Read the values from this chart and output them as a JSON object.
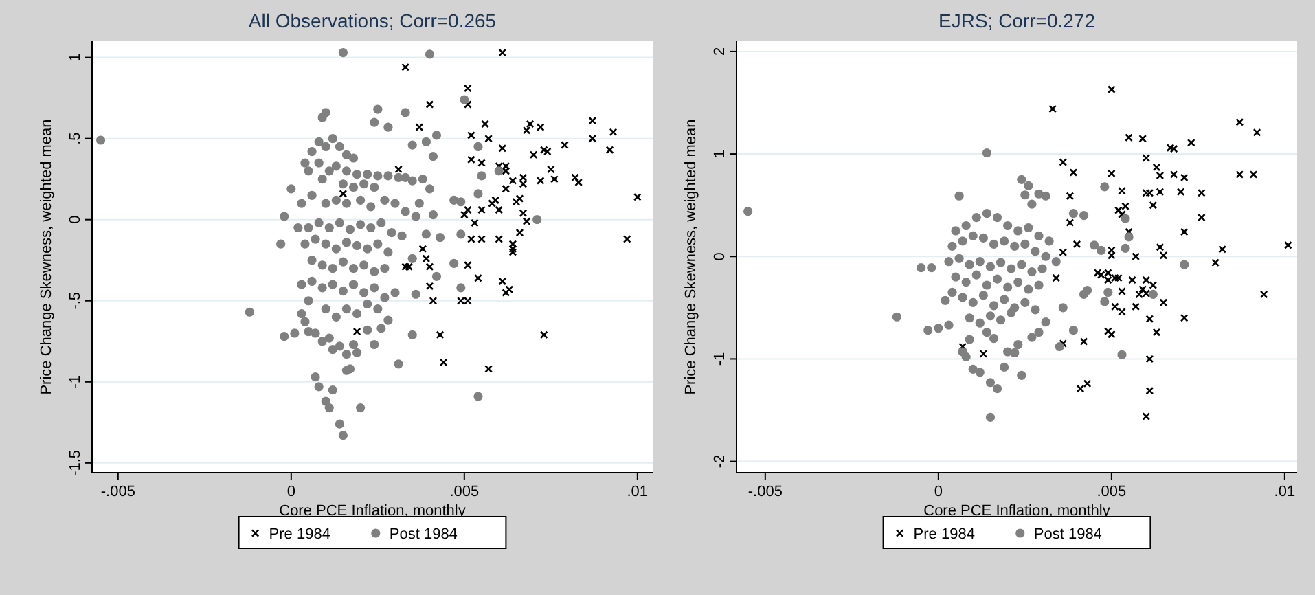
{
  "chart_data": [
    {
      "type": "scatter",
      "title": "All Observations; Corr=0.265",
      "xlabel": "Core PCE Inflation, monthly",
      "ylabel": "Price Change Skewness, weighted mean",
      "xlim": [
        -0.00575,
        0.01044
      ],
      "ylim": [
        -1.56,
        1.1
      ],
      "xticks": [
        {
          "value": -0.005,
          "label": "-.005"
        },
        0,
        {
          "value": 0.005,
          "label": ".005"
        },
        {
          "value": 0.01,
          "label": ".01"
        }
      ],
      "yticks": [
        {
          "value": -1.5,
          "label": "-1.5"
        },
        -1,
        {
          "value": -0.5,
          "label": "-.5"
        },
        0,
        {
          "value": 0.5,
          "label": ".5"
        },
        1
      ],
      "grid": "y",
      "legend": "bottom",
      "series": [
        {
          "name": "Pre 1984",
          "color": "#000000",
          "marker": "cross",
          "x": [
            0.0033,
            0.0061,
            0.004,
            0.0051,
            0.0051,
            0.0037,
            0.0056,
            0.0052,
            0.0057,
            0.0061,
            0.0069,
            0.0068,
            0.0072,
            0.0087,
            0.0087,
            0.0093,
            0.0092,
            0.0079,
            0.0073,
            0.0074,
            0.007,
            0.0052,
            0.0055,
            0.006,
            0.0062,
            0.0062,
            0.0075,
            0.0082,
            0.0083,
            0.0076,
            0.0072,
            0.0067,
            0.0067,
            0.0064,
            0.01,
            0.0062,
            0.0066,
            0.0065,
            0.0059,
            0.0058,
            0.006,
            0.0055,
            0.0051,
            0.005,
            0.0053,
            0.0067,
            0.0068,
            0.0066,
            0.0052,
            0.0055,
            0.006,
            0.0064,
            0.0064,
            0.0097,
            0.0038,
            0.0039,
            0.004,
            0.0034,
            0.0051,
            0.0064,
            0.0033,
            0.0054,
            0.0061,
            0.0062,
            0.0063,
            0.004,
            0.0041,
            0.0049,
            0.0051,
            0.0043,
            0.0073,
            0.0019,
            0.0044,
            0.0057,
            0.0031,
            0.0015
          ],
          "values": [
            0.94,
            1.03,
            0.71,
            0.81,
            0.71,
            0.57,
            0.59,
            0.52,
            0.5,
            0.44,
            0.59,
            0.55,
            0.57,
            0.61,
            0.5,
            0.54,
            0.43,
            0.46,
            0.43,
            0.42,
            0.4,
            0.37,
            0.35,
            0.33,
            0.33,
            0.3,
            0.31,
            0.26,
            0.23,
            0.25,
            0.24,
            0.26,
            0.22,
            0.24,
            0.14,
            0.19,
            0.13,
            0.11,
            0.12,
            0.1,
            0.06,
            0.06,
            0.06,
            0.03,
            -0.02,
            0.04,
            -0.01,
            -0.08,
            -0.12,
            -0.12,
            -0.12,
            -0.15,
            -0.18,
            -0.12,
            -0.18,
            -0.24,
            -0.29,
            -0.29,
            -0.28,
            -0.2,
            -0.29,
            -0.36,
            -0.38,
            -0.45,
            -0.43,
            -0.41,
            -0.5,
            -0.5,
            -0.5,
            -0.71,
            -0.71,
            -0.69,
            -0.88,
            -0.92,
            0.31,
            0.16
          ]
        },
        {
          "name": "Post 1984",
          "color": "#808080",
          "marker": "circle",
          "x": [
            -0.0055,
            0.0015,
            0.004,
            0.005,
            0.0033,
            0.0025,
            0.001,
            0.0009,
            0.0024,
            0.0028,
            0.0042,
            0.0035,
            0.0039,
            0.0041,
            0.0054,
            0.006,
            0.0055,
            0.0054,
            0.0047,
            0.0049,
            0.0071,
            0.0049,
            0,
            -0.0002,
            -0.0003,
            0.0043,
            0.0039,
            0.0041,
            0.0036,
            0.0037,
            0.004,
            0.0035,
            0.0038,
            0.0033,
            -0.0012,
            -0.0002,
            0.0001,
            0.0003,
            0.0004,
            0.0005,
            0.0007,
            0.0007,
            0.0008,
            0.0009,
            0.0011,
            0.0012,
            0.001,
            0.0011,
            0.0012,
            0.0014,
            0.0015,
            0.0014,
            0.0016,
            0.0016,
            0.0017,
            0.0018,
            0.0019,
            0.002,
            0.0022,
            0.0024,
            0.0026,
            0.0028,
            0.0031,
            0.0035,
            0.0054,
            0.0036,
            0.0042,
            0.0049,
            0.0047,
            0.0035,
            0.001,
            0.0012,
            0.0014,
            0.0016,
            0.0018,
            0.0008,
            0.0006,
            0.0004,
            0.0005,
            0.0008,
            0.0011,
            0.0013,
            0.0016,
            0.0019,
            0.0022,
            0.0025,
            0.0028,
            0.0031,
            0.0021,
            0.0024,
            0.0018,
            0.0015,
            0.0009,
            0.0006,
            0.0003,
            0.001,
            0.0013,
            0.0016,
            0.002,
            0.0023,
            0.0027,
            0.003,
            0.0033,
            0.0002,
            0.0005,
            0.0008,
            0.0011,
            0.0014,
            0.0017,
            0.002,
            0.0023,
            0.0026,
            0.0029,
            0.0032,
            0.0004,
            0.0007,
            0.001,
            0.0013,
            0.0016,
            0.0019,
            0.0022,
            0.0025,
            0.0028,
            0.0006,
            0.0009,
            0.0012,
            0.0015,
            0.0018,
            0.0021,
            0.0024,
            0.0027,
            0.0003,
            0.0006,
            0.0009,
            0.0012,
            0.0015,
            0.0018,
            0.0021,
            0.0024,
            0.0027,
            0.003,
            0.0005,
            0.001,
            0.0013,
            0.0016,
            0.0019,
            0.0022,
            0.0025
          ],
          "values": [
            0.49,
            1.03,
            1.02,
            0.74,
            0.66,
            0.68,
            0.66,
            0.63,
            0.6,
            0.57,
            0.52,
            0.46,
            0.48,
            0.39,
            0.45,
            0.3,
            0.27,
            0.16,
            0.12,
            0.11,
            0,
            -0.09,
            0.19,
            0.02,
            -0.15,
            -0.11,
            -0.09,
            0.03,
            0.02,
            0.1,
            0.19,
            0.24,
            0.25,
            0.26,
            -0.57,
            -0.72,
            -0.7,
            -0.58,
            -0.63,
            -0.69,
            -0.7,
            -0.97,
            -1.03,
            -0.75,
            -0.73,
            -1.05,
            -1.12,
            -1.16,
            -0.8,
            -1.26,
            -1.33,
            -0.78,
            -0.83,
            -0.93,
            -0.92,
            -0.77,
            -0.82,
            -1.16,
            -0.68,
            -0.77,
            -0.67,
            -0.62,
            -0.89,
            -0.71,
            -1.09,
            -0.46,
            -0.35,
            -0.42,
            -0.27,
            -0.24,
            0.45,
            0.5,
            0.45,
            0.4,
            0.38,
            0.48,
            0.42,
            0.35,
            0.3,
            0.35,
            0.3,
            0.33,
            0.3,
            0.28,
            0.28,
            0.27,
            0.27,
            0.26,
            0.22,
            0.2,
            0.2,
            0.22,
            0.25,
            0.15,
            0.1,
            0.1,
            0.12,
            0.1,
            0.12,
            0.08,
            0.12,
            0.1,
            0.05,
            -0.05,
            -0.05,
            -0.02,
            -0.05,
            -0.02,
            -0.06,
            -0.03,
            -0.05,
            -0.02,
            -0.08,
            -0.1,
            -0.15,
            -0.12,
            -0.15,
            -0.18,
            -0.14,
            -0.16,
            -0.18,
            -0.15,
            -0.2,
            -0.25,
            -0.28,
            -0.3,
            -0.26,
            -0.3,
            -0.28,
            -0.32,
            -0.3,
            -0.4,
            -0.38,
            -0.42,
            -0.4,
            -0.44,
            -0.4,
            -0.45,
            -0.42,
            -0.48,
            -0.45,
            -0.5,
            -0.55,
            -0.6,
            -0.55,
            -0.58,
            -0.52,
            -0.55
          ]
        }
      ]
    },
    {
      "type": "scatter",
      "title": "EJRS; Corr=0.272",
      "xlabel": "Core PCE Inflation, monthly",
      "ylabel": "Price Change Skewness, weighted mean",
      "xlim": [
        -0.00583,
        0.01036
      ],
      "ylim": [
        -2.11,
        2.1
      ],
      "xticks": [
        {
          "value": -0.005,
          "label": "-.005"
        },
        0,
        {
          "value": 0.005,
          "label": ".005"
        },
        {
          "value": 0.01,
          "label": ".01"
        }
      ],
      "yticks": [
        -2,
        -1,
        0,
        1,
        2
      ],
      "grid": "y",
      "legend": "bottom",
      "series": [
        {
          "name": "Pre 1984",
          "color": "#000000",
          "marker": "cross",
          "x": [
            0.0033,
            0.005,
            0.0055,
            0.0059,
            0.006,
            0.0067,
            0.0068,
            0.0073,
            0.0087,
            0.0092,
            0.0087,
            0.0091,
            0.0036,
            0.0039,
            0.005,
            0.0038,
            0.0053,
            0.0054,
            0.0052,
            0.0053,
            0.0063,
            0.0064,
            0.0068,
            0.0071,
            0.006,
            0.0061,
            0.0064,
            0.007,
            0.0076,
            0.0062,
            0.0076,
            0.0071,
            0.0055,
            0.0038,
            0.0101,
            0.0082,
            0.0064,
            0.0065,
            0.005,
            0.005,
            0.0057,
            0.004,
            0.008,
            0.0094,
            0.0036,
            0.0046,
            0.0049,
            0.0047,
            0.0051,
            0.0052,
            0.0049,
            0.0056,
            0.006,
            0.0062,
            0.0053,
            0.0059,
            0.0058,
            0.006,
            0.0065,
            0.0051,
            0.0057,
            0.0053,
            0.0061,
            0.0071,
            0.0063,
            0.0049,
            0.005,
            0.0042,
            0.0036,
            0.0007,
            0.0013,
            0.0061,
            0.0041,
            0.0043,
            0.0061,
            0.006,
            0.0034
          ],
          "values": [
            1.44,
            1.63,
            1.16,
            1.15,
            0.96,
            1.06,
            1.05,
            1.11,
            1.31,
            1.21,
            0.8,
            0.8,
            0.92,
            0.82,
            0.81,
            0.59,
            0.64,
            0.49,
            0.45,
            0.41,
            0.87,
            0.79,
            0.8,
            0.77,
            0.62,
            0.62,
            0.63,
            0.63,
            0.62,
            0.5,
            0.38,
            0.24,
            0.24,
            0.33,
            0.11,
            0.07,
            0.09,
            0.01,
            0.06,
            0.01,
            0,
            0.12,
            -0.06,
            -0.37,
            0.04,
            -0.16,
            -0.16,
            -0.18,
            -0.21,
            -0.21,
            -0.23,
            -0.23,
            -0.23,
            -0.28,
            -0.34,
            -0.32,
            -0.37,
            -0.36,
            -0.45,
            -0.49,
            -0.49,
            -0.54,
            -0.61,
            -0.6,
            -0.74,
            -0.73,
            -0.76,
            -0.83,
            -0.85,
            -0.88,
            -0.95,
            -1,
            -1.29,
            -1.24,
            -1.31,
            -1.56,
            -0.21
          ]
        },
        {
          "name": "Post 1984",
          "color": "#808080",
          "marker": "circle",
          "x": [
            -0.0055,
            0.0014,
            0.0024,
            0.0026,
            0.0025,
            0.0029,
            0.0031,
            0.0027,
            0.0048,
            0.0006,
            0.0054,
            0.0054,
            0.0055,
            0.0039,
            0.0042,
            0.0045,
            0.0047,
            0.0071,
            -0.0012,
            -0.0003,
            0,
            0.0007,
            0.0008,
            0.001,
            0.0012,
            0.0015,
            0.0017,
            0.0015,
            0.0019,
            0.0024,
            0.002,
            0.0022,
            0.0023,
            0.0027,
            0.0029,
            0.0031,
            0.0035,
            0.0039,
            0.0053,
            0.0062,
            0.0042,
            0.0049,
            0.0048,
            0.0043,
            -0.0005,
            -0.0002,
            0.0002,
            0.0003,
            0.0009,
            0.0016,
            0.0014,
            0.0036,
            0.0005,
            0.0008,
            0.0011,
            0.0014,
            0.0017,
            0.002,
            0.0023,
            0.0026,
            0.0029,
            0.0032,
            0.0004,
            0.0007,
            0.001,
            0.0013,
            0.0016,
            0.0019,
            0.0022,
            0.0025,
            0.0028,
            0.0031,
            0.0034,
            0.0003,
            0.0006,
            0.0009,
            0.0012,
            0.0015,
            0.0018,
            0.0021,
            0.0024,
            0.0027,
            0.003,
            0.0005,
            0.0008,
            0.0011,
            0.0014,
            0.0017,
            0.002,
            0.0023,
            0.0026,
            0.0029,
            0.0004,
            0.0007,
            0.001,
            0.0013,
            0.0016,
            0.0019,
            0.0022,
            0.0025,
            0.0028,
            0.0009,
            0.0012,
            0.0015,
            0.0018,
            0.0021
          ],
          "values": [
            0.44,
            1.01,
            0.75,
            0.69,
            0.6,
            0.61,
            0.59,
            0.51,
            0.68,
            0.59,
            0.08,
            0.37,
            0.19,
            0.42,
            0.4,
            0.11,
            0.06,
            -0.08,
            -0.59,
            -0.72,
            -0.7,
            -0.93,
            -0.98,
            -1.1,
            -1.13,
            -1.23,
            -1.29,
            -1.57,
            -1.08,
            -1.16,
            -0.93,
            -0.94,
            -0.86,
            -0.79,
            -0.74,
            -0.64,
            -0.88,
            -0.72,
            -0.96,
            -0.37,
            -0.37,
            -0.35,
            -0.44,
            -0.33,
            -0.11,
            -0.11,
            -0.43,
            -0.67,
            -0.81,
            -0.8,
            -0.74,
            -0.5,
            0.25,
            0.3,
            0.38,
            0.42,
            0.38,
            0.3,
            0.25,
            0.28,
            0.2,
            0.15,
            0.1,
            0.15,
            0.2,
            0.18,
            0.12,
            0.15,
            0.1,
            0.12,
            0.05,
            0,
            -0.05,
            -0.05,
            -0.02,
            -0.08,
            -0.05,
            -0.1,
            -0.06,
            -0.12,
            -0.08,
            -0.15,
            -0.12,
            -0.2,
            -0.25,
            -0.18,
            -0.28,
            -0.22,
            -0.3,
            -0.25,
            -0.32,
            -0.28,
            -0.35,
            -0.4,
            -0.45,
            -0.38,
            -0.48,
            -0.42,
            -0.5,
            -0.45,
            -0.52,
            -0.6,
            -0.65,
            -0.58,
            -0.62,
            -0.55
          ]
        }
      ]
    }
  ]
}
